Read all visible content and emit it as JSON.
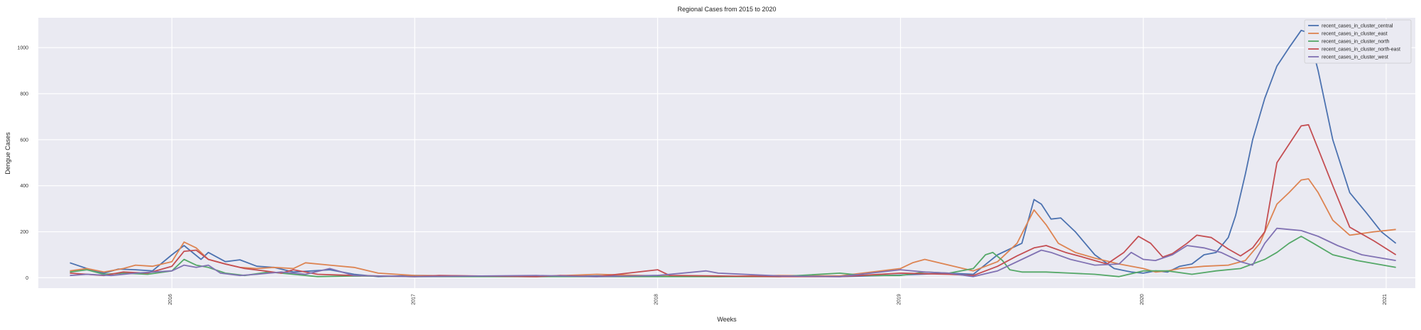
{
  "chart_data": {
    "type": "line",
    "title": "Regional Cases from 2015 to 2020",
    "xlabel": "Weeks",
    "ylabel": "Dengue Cases",
    "xlim": [
      2015.45,
      2021.12
    ],
    "ylim": [
      -45,
      1130
    ],
    "yticks": [
      0,
      200,
      400,
      600,
      800,
      1000
    ],
    "xticks": [
      "2016",
      "2017",
      "2018",
      "2019",
      "2020",
      "2021"
    ],
    "grid": true,
    "legend_position": "top-right",
    "series": [
      {
        "name": "recent_cases_in_cluster_central",
        "color": "#4c72b0",
        "points": [
          [
            2015.58,
            65
          ],
          [
            2015.65,
            40
          ],
          [
            2015.72,
            20
          ],
          [
            2015.78,
            38
          ],
          [
            2015.85,
            35
          ],
          [
            2015.92,
            30
          ],
          [
            2016.0,
            100
          ],
          [
            2016.05,
            140
          ],
          [
            2016.12,
            80
          ],
          [
            2016.15,
            110
          ],
          [
            2016.22,
            70
          ],
          [
            2016.28,
            78
          ],
          [
            2016.35,
            50
          ],
          [
            2016.42,
            45
          ],
          [
            2016.5,
            25
          ],
          [
            2016.58,
            30
          ],
          [
            2016.65,
            35
          ],
          [
            2016.75,
            15
          ],
          [
            2016.85,
            5
          ],
          [
            2017.0,
            10
          ],
          [
            2017.5,
            5
          ],
          [
            2017.75,
            8
          ],
          [
            2018.0,
            10
          ],
          [
            2018.25,
            5
          ],
          [
            2018.5,
            8
          ],
          [
            2018.75,
            5
          ],
          [
            2019.0,
            12
          ],
          [
            2019.2,
            20
          ],
          [
            2019.3,
            15
          ],
          [
            2019.4,
            100
          ],
          [
            2019.5,
            150
          ],
          [
            2019.55,
            340
          ],
          [
            2019.58,
            320
          ],
          [
            2019.62,
            255
          ],
          [
            2019.66,
            260
          ],
          [
            2019.72,
            200
          ],
          [
            2019.8,
            100
          ],
          [
            2019.88,
            40
          ],
          [
            2019.95,
            25
          ],
          [
            2020.0,
            20
          ],
          [
            2020.05,
            30
          ],
          [
            2020.1,
            25
          ],
          [
            2020.15,
            50
          ],
          [
            2020.2,
            60
          ],
          [
            2020.25,
            100
          ],
          [
            2020.3,
            110
          ],
          [
            2020.35,
            175
          ],
          [
            2020.38,
            270
          ],
          [
            2020.42,
            450
          ],
          [
            2020.45,
            600
          ],
          [
            2020.5,
            780
          ],
          [
            2020.55,
            920
          ],
          [
            2020.6,
            1000
          ],
          [
            2020.65,
            1075
          ],
          [
            2020.68,
            1065
          ],
          [
            2020.72,
            900
          ],
          [
            2020.78,
            600
          ],
          [
            2020.85,
            370
          ],
          [
            2020.92,
            280
          ],
          [
            2020.98,
            200
          ],
          [
            2021.04,
            150
          ]
        ]
      },
      {
        "name": "recent_cases_in_cluster_east",
        "color": "#dd8452",
        "points": [
          [
            2015.58,
            30
          ],
          [
            2015.65,
            40
          ],
          [
            2015.72,
            25
          ],
          [
            2015.8,
            40
          ],
          [
            2015.85,
            55
          ],
          [
            2015.92,
            50
          ],
          [
            2016.0,
            70
          ],
          [
            2016.05,
            155
          ],
          [
            2016.1,
            130
          ],
          [
            2016.15,
            80
          ],
          [
            2016.22,
            60
          ],
          [
            2016.28,
            45
          ],
          [
            2016.35,
            40
          ],
          [
            2016.42,
            45
          ],
          [
            2016.5,
            40
          ],
          [
            2016.55,
            65
          ],
          [
            2016.65,
            55
          ],
          [
            2016.75,
            45
          ],
          [
            2016.85,
            20
          ],
          [
            2017.0,
            10
          ],
          [
            2017.5,
            5
          ],
          [
            2017.75,
            15
          ],
          [
            2018.0,
            8
          ],
          [
            2018.25,
            5
          ],
          [
            2018.5,
            10
          ],
          [
            2018.75,
            8
          ],
          [
            2019.0,
            40
          ],
          [
            2019.05,
            65
          ],
          [
            2019.1,
            80
          ],
          [
            2019.2,
            55
          ],
          [
            2019.3,
            30
          ],
          [
            2019.4,
            70
          ],
          [
            2019.48,
            150
          ],
          [
            2019.55,
            295
          ],
          [
            2019.6,
            230
          ],
          [
            2019.65,
            150
          ],
          [
            2019.72,
            110
          ],
          [
            2019.8,
            85
          ],
          [
            2019.9,
            60
          ],
          [
            2020.0,
            40
          ],
          [
            2020.05,
            25
          ],
          [
            2020.1,
            30
          ],
          [
            2020.15,
            40
          ],
          [
            2020.25,
            50
          ],
          [
            2020.35,
            55
          ],
          [
            2020.42,
            75
          ],
          [
            2020.48,
            150
          ],
          [
            2020.55,
            320
          ],
          [
            2020.6,
            370
          ],
          [
            2020.65,
            425
          ],
          [
            2020.68,
            430
          ],
          [
            2020.72,
            370
          ],
          [
            2020.78,
            250
          ],
          [
            2020.85,
            185
          ],
          [
            2020.95,
            200
          ],
          [
            2021.04,
            210
          ]
        ]
      },
      {
        "name": "recent_cases_in_cluster_north",
        "color": "#55a868",
        "points": [
          [
            2015.58,
            25
          ],
          [
            2015.65,
            35
          ],
          [
            2015.72,
            15
          ],
          [
            2015.8,
            20
          ],
          [
            2015.9,
            15
          ],
          [
            2016.0,
            30
          ],
          [
            2016.05,
            80
          ],
          [
            2016.1,
            55
          ],
          [
            2016.15,
            45
          ],
          [
            2016.22,
            20
          ],
          [
            2016.3,
            10
          ],
          [
            2016.4,
            25
          ],
          [
            2016.5,
            15
          ],
          [
            2016.6,
            5
          ],
          [
            2016.75,
            8
          ],
          [
            2017.0,
            5
          ],
          [
            2017.5,
            5
          ],
          [
            2018.0,
            5
          ],
          [
            2018.5,
            5
          ],
          [
            2018.75,
            20
          ],
          [
            2018.85,
            10
          ],
          [
            2019.0,
            10
          ],
          [
            2019.1,
            25
          ],
          [
            2019.2,
            20
          ],
          [
            2019.3,
            40
          ],
          [
            2019.35,
            100
          ],
          [
            2019.38,
            110
          ],
          [
            2019.42,
            75
          ],
          [
            2019.45,
            35
          ],
          [
            2019.5,
            25
          ],
          [
            2019.6,
            25
          ],
          [
            2019.7,
            20
          ],
          [
            2019.8,
            15
          ],
          [
            2019.9,
            5
          ],
          [
            2020.0,
            30
          ],
          [
            2020.1,
            30
          ],
          [
            2020.2,
            15
          ],
          [
            2020.3,
            30
          ],
          [
            2020.4,
            40
          ],
          [
            2020.5,
            80
          ],
          [
            2020.55,
            110
          ],
          [
            2020.6,
            150
          ],
          [
            2020.65,
            180
          ],
          [
            2020.7,
            150
          ],
          [
            2020.78,
            100
          ],
          [
            2020.88,
            75
          ],
          [
            2021.04,
            45
          ]
        ]
      },
      {
        "name": "recent_cases_in_cluster_north-east",
        "color": "#c44e52",
        "points": [
          [
            2015.58,
            20
          ],
          [
            2015.65,
            15
          ],
          [
            2015.72,
            10
          ],
          [
            2015.8,
            25
          ],
          [
            2015.9,
            20
          ],
          [
            2016.0,
            50
          ],
          [
            2016.05,
            115
          ],
          [
            2016.1,
            120
          ],
          [
            2016.15,
            80
          ],
          [
            2016.22,
            60
          ],
          [
            2016.3,
            40
          ],
          [
            2016.38,
            30
          ],
          [
            2016.45,
            20
          ],
          [
            2016.5,
            35
          ],
          [
            2016.6,
            15
          ],
          [
            2016.75,
            10
          ],
          [
            2017.0,
            5
          ],
          [
            2017.1,
            10
          ],
          [
            2017.5,
            5
          ],
          [
            2017.6,
            10
          ],
          [
            2017.75,
            5
          ],
          [
            2018.0,
            35
          ],
          [
            2018.05,
            10
          ],
          [
            2018.25,
            8
          ],
          [
            2018.5,
            5
          ],
          [
            2018.75,
            5
          ],
          [
            2019.0,
            20
          ],
          [
            2019.2,
            15
          ],
          [
            2019.3,
            10
          ],
          [
            2019.4,
            50
          ],
          [
            2019.48,
            95
          ],
          [
            2019.55,
            130
          ],
          [
            2019.6,
            140
          ],
          [
            2019.68,
            110
          ],
          [
            2019.75,
            90
          ],
          [
            2019.85,
            60
          ],
          [
            2019.92,
            110
          ],
          [
            2019.98,
            180
          ],
          [
            2020.03,
            150
          ],
          [
            2020.08,
            90
          ],
          [
            2020.12,
            105
          ],
          [
            2020.18,
            150
          ],
          [
            2020.22,
            185
          ],
          [
            2020.28,
            175
          ],
          [
            2020.35,
            125
          ],
          [
            2020.4,
            95
          ],
          [
            2020.45,
            130
          ],
          [
            2020.5,
            200
          ],
          [
            2020.55,
            500
          ],
          [
            2020.6,
            580
          ],
          [
            2020.65,
            660
          ],
          [
            2020.68,
            665
          ],
          [
            2020.72,
            560
          ],
          [
            2020.78,
            400
          ],
          [
            2020.85,
            220
          ],
          [
            2020.95,
            160
          ],
          [
            2021.04,
            100
          ]
        ]
      },
      {
        "name": "recent_cases_in_cluster_west",
        "color": "#8172b3",
        "points": [
          [
            2015.58,
            10
          ],
          [
            2015.65,
            15
          ],
          [
            2015.75,
            10
          ],
          [
            2015.85,
            20
          ],
          [
            2015.92,
            25
          ],
          [
            2016.0,
            30
          ],
          [
            2016.05,
            55
          ],
          [
            2016.1,
            45
          ],
          [
            2016.15,
            55
          ],
          [
            2016.2,
            20
          ],
          [
            2016.28,
            10
          ],
          [
            2016.35,
            15
          ],
          [
            2016.45,
            25
          ],
          [
            2016.55,
            15
          ],
          [
            2016.65,
            40
          ],
          [
            2016.75,
            10
          ],
          [
            2017.0,
            5
          ],
          [
            2017.5,
            10
          ],
          [
            2017.75,
            5
          ],
          [
            2018.0,
            10
          ],
          [
            2018.2,
            30
          ],
          [
            2018.25,
            20
          ],
          [
            2018.5,
            8
          ],
          [
            2018.75,
            5
          ],
          [
            2019.0,
            35
          ],
          [
            2019.1,
            25
          ],
          [
            2019.2,
            20
          ],
          [
            2019.3,
            5
          ],
          [
            2019.4,
            30
          ],
          [
            2019.5,
            80
          ],
          [
            2019.58,
            120
          ],
          [
            2019.62,
            110
          ],
          [
            2019.7,
            80
          ],
          [
            2019.8,
            55
          ],
          [
            2019.9,
            60
          ],
          [
            2019.95,
            110
          ],
          [
            2020.0,
            80
          ],
          [
            2020.05,
            75
          ],
          [
            2020.12,
            100
          ],
          [
            2020.18,
            140
          ],
          [
            2020.25,
            130
          ],
          [
            2020.32,
            110
          ],
          [
            2020.4,
            70
          ],
          [
            2020.45,
            55
          ],
          [
            2020.5,
            150
          ],
          [
            2020.55,
            215
          ],
          [
            2020.6,
            210
          ],
          [
            2020.65,
            205
          ],
          [
            2020.72,
            180
          ],
          [
            2020.8,
            140
          ],
          [
            2020.9,
            100
          ],
          [
            2021.04,
            75
          ]
        ]
      }
    ]
  }
}
